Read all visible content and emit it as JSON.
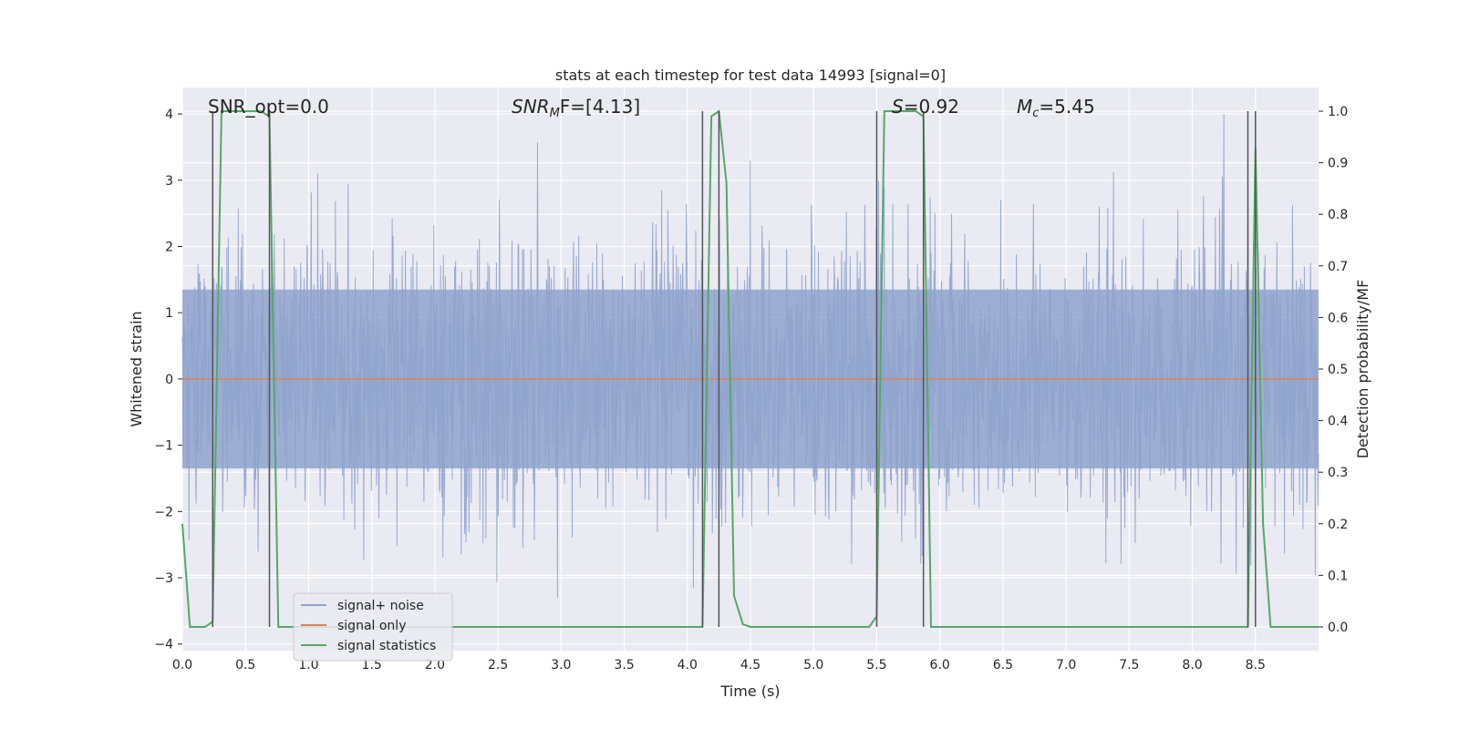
{
  "chart_data": {
    "type": "line",
    "title": "stats at each timestep for test data 14993 [signal=0]",
    "xlabel": "Time (s)",
    "ylabel": "Whitened strain",
    "y2label": "Detection probability/MF",
    "xlim": [
      0.0,
      9.0
    ],
    "ylim": [
      -4.1,
      4.4
    ],
    "y2lim": [
      -0.046,
      1.046
    ],
    "xticks": [
      0.0,
      0.5,
      1.0,
      1.5,
      2.0,
      2.5,
      3.0,
      3.5,
      4.0,
      4.5,
      5.0,
      5.5,
      6.0,
      6.5,
      7.0,
      7.5,
      8.0,
      8.5
    ],
    "xtick_labels": [
      "0.0",
      "0.5",
      "1.0",
      "1.5",
      "2.0",
      "2.5",
      "3.0",
      "3.5",
      "4.0",
      "4.5",
      "5.0",
      "5.5",
      "6.0",
      "6.5",
      "7.0",
      "7.5",
      "8.0",
      "8.5"
    ],
    "yticks": [
      -4,
      -3,
      -2,
      -1,
      0,
      1,
      2,
      3,
      4
    ],
    "ytick_labels": [
      "−4",
      "−3",
      "−2",
      "−1",
      "0",
      "1",
      "2",
      "3",
      "4"
    ],
    "y2ticks": [
      0.0,
      0.1,
      0.2,
      0.3,
      0.4,
      0.5,
      0.6,
      0.7,
      0.8,
      0.9,
      1.0
    ],
    "y2tick_labels": [
      "0.0",
      "0.1",
      "0.2",
      "0.3",
      "0.4",
      "0.5",
      "0.6",
      "0.7",
      "0.8",
      "0.9",
      "1.0"
    ],
    "grid": true,
    "legend_position": "lower-left",
    "annotations": {
      "snr_opt": "SNR_opt=0.0",
      "snr_mf_main": "SNR",
      "snr_mf_sub": "M",
      "snr_mf_rest": "F=[4.13]",
      "s_main": "S",
      "s_rest": "=0.92",
      "mc_main": "M",
      "mc_sub": "c",
      "mc_rest": "=5.45"
    },
    "series": [
      {
        "name": "signal+ noise",
        "color": "#8fa3cc",
        "style": "noise band, whitened strain",
        "band_std": 1.0,
        "band_range": [
          -4.0,
          4.0
        ]
      },
      {
        "name": "signal only",
        "color": "#dd8452",
        "x": [
          0.0,
          9.0
        ],
        "y": [
          0.0,
          0.0
        ]
      },
      {
        "name": "signal statistics",
        "color": "#55a868",
        "axis": "secondary",
        "x": [
          0.0,
          0.06,
          0.18,
          0.24,
          0.31,
          0.62,
          0.69,
          0.76,
          1.0,
          2.0,
          3.0,
          4.0,
          4.12,
          4.19,
          4.25,
          4.31,
          4.37,
          4.44,
          4.5,
          5.0,
          5.44,
          5.5,
          5.56,
          5.81,
          5.87,
          5.93,
          6.0,
          7.0,
          8.0,
          8.44,
          8.5,
          8.56,
          8.62,
          8.7,
          9.0
        ],
        "y": [
          0.2,
          0.0,
          0.0,
          0.01,
          1.0,
          1.0,
          0.99,
          0.0,
          0.0,
          0.0,
          0.0,
          0.0,
          0.0,
          0.99,
          1.0,
          0.86,
          0.06,
          0.005,
          0.0,
          0.0,
          0.0,
          0.02,
          1.0,
          1.0,
          0.99,
          0.0,
          0.0,
          0.0,
          0.0,
          0.0,
          0.93,
          0.2,
          0.0,
          0.0,
          0.0
        ]
      }
    ],
    "vertical_lines": [
      {
        "x": 0.24,
        "color": "#555555"
      },
      {
        "x": 0.69,
        "color": "#555555"
      },
      {
        "x": 4.12,
        "color": "#555555"
      },
      {
        "x": 4.25,
        "color": "#555555"
      },
      {
        "x": 5.5,
        "color": "#555555"
      },
      {
        "x": 5.87,
        "color": "#555555"
      },
      {
        "x": 8.44,
        "color": "#555555"
      },
      {
        "x": 8.5,
        "color": "#555555"
      }
    ],
    "legend": [
      {
        "label": "signal+ noise",
        "color": "#8fa3cc"
      },
      {
        "label": "signal only",
        "color": "#dd8452"
      },
      {
        "label": "signal statistics",
        "color": "#55a868"
      }
    ],
    "colors": {
      "plot_bg": "#eaeaf2",
      "grid": "#ffffff",
      "text": "#262626"
    }
  }
}
